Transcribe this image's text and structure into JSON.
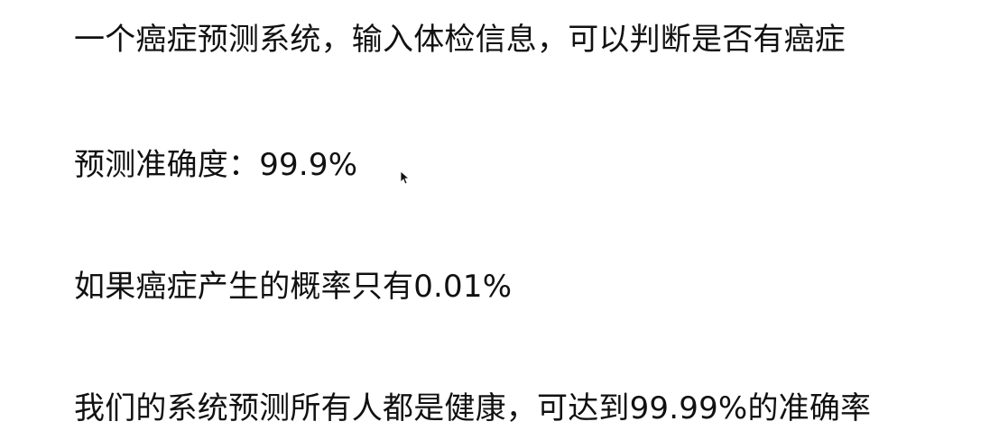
{
  "lines": [
    "一个癌症预测系统，输入体检信息，可以判断是否有癌症",
    "预测准确度：99.9%",
    "如果癌症产生的概率只有0.01%",
    "我们的系统预测所有人都是健康，可达到99.99%的准确率"
  ],
  "cursor": {
    "icon": "mouse-pointer-icon"
  }
}
